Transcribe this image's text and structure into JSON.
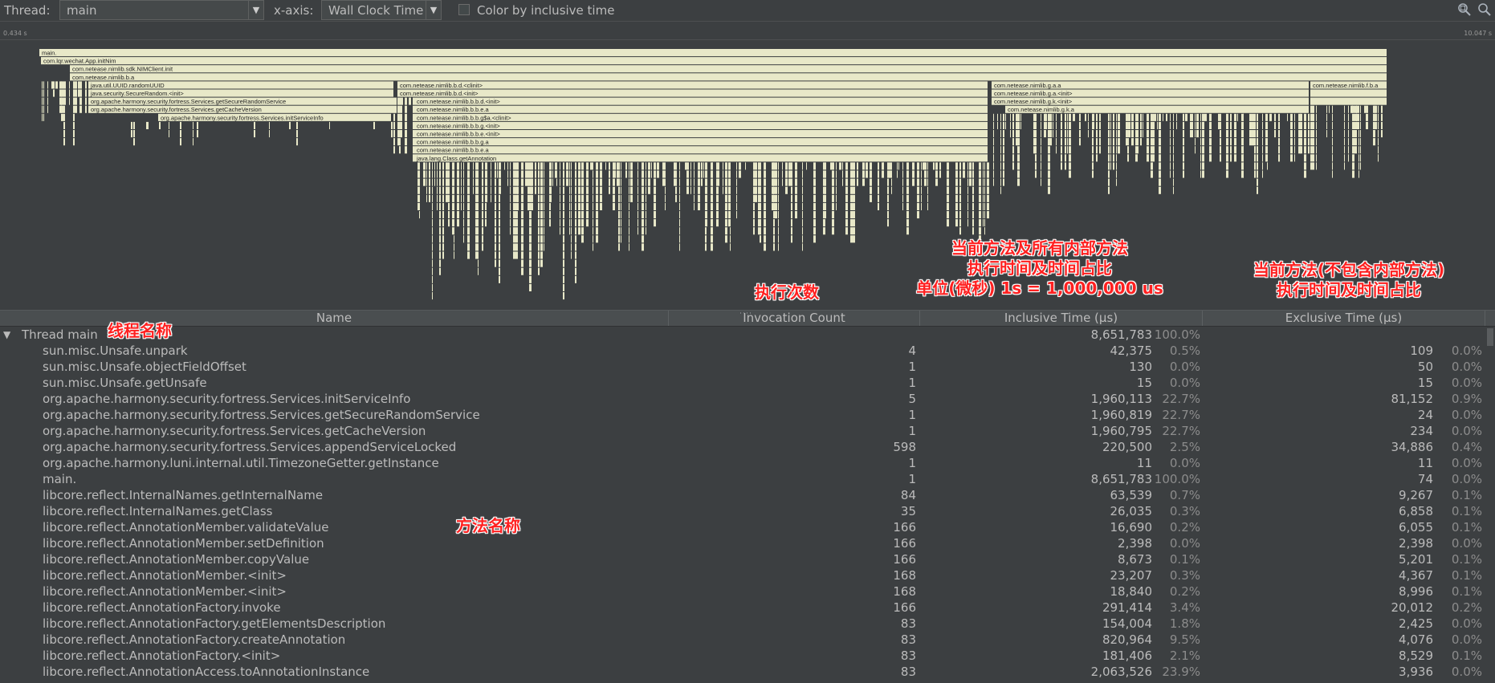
{
  "toolbar": {
    "thread_label": "Thread:",
    "thread_value": "main",
    "xaxis_label": "x-axis:",
    "xaxis_value": "Wall Clock Time",
    "color_checkbox_label": "Color by inclusive time",
    "color_checkbox_checked": false,
    "icons": [
      "zoom-fit-icon",
      "search-icon"
    ]
  },
  "ruler": {
    "start": "0.434 s",
    "end": "10.047 s"
  },
  "flame": {
    "labels": [
      "main.",
      "com.lqr.wechat.App.initNim",
      "com.netease.nimlib.sdk.NIMClient.init",
      "com.netease.nimlib.b.a",
      "java.util.UUID.randomUUID",
      "java.security.SecureRandom.<init>",
      "org.apache.harmony.security.fortress.Services.getSecureRandomService",
      "org.apache.harmony.security.fortress.Services.getCacheVersion",
      "org.apache.harmony.security.fortress.Services.initServiceInfo",
      "com.netease.nimlib.b.d.<clinit>",
      "com.netease.nimlib.b.d.<init>",
      "com.netease.nimlib.b.b.d.<init>",
      "com.netease.nimlib.b.b.e.a",
      "com.netease.nimlib.b.b.g$a.<clinit>",
      "com.netease.nimlib.b.b.g.<init>",
      "com.netease.nimlib.b.b.e.<init>",
      "com.netease.nimlib.b.b.g.a",
      "com.netease.nimlib.b.b.e.a",
      "java.lang.Class.getAnnotation",
      "com.netease.nimlib.g.a.a",
      "com.netease.nimlib.g.a.<init>",
      "com.netease.nimlib.g.k.<init>",
      "com.netease.nimlib.g.k.a",
      "com.netease.nimlib.f.b.a"
    ],
    "color": "#e8e8c8"
  },
  "annotations": {
    "count": "执行次数",
    "inclusive": [
      "当前方法及所有内部方法",
      "执行时间及时间占比",
      "单位(微秒) 1s = 1,000,000 us"
    ],
    "exclusive": [
      "当前方法(不包含内部方法)",
      "执行时间及时间占比"
    ],
    "thread": "线程名称",
    "method": "方法名称",
    "color": "#ff2020"
  },
  "table": {
    "headers": [
      "Name",
      "Invocation Count",
      "Inclusive Time (µs)",
      "Exclusive Time (µs)"
    ],
    "thread_row": {
      "name": "Thread main",
      "incl": "8,651,783",
      "inclp": "100.0%"
    },
    "rows": [
      {
        "name": "sun.misc.Unsafe.unpark",
        "inv": "4",
        "incl": "42,375",
        "inclp": "0.5%",
        "excl": "109",
        "exclp": "0.0%"
      },
      {
        "name": "sun.misc.Unsafe.objectFieldOffset",
        "inv": "1",
        "incl": "130",
        "inclp": "0.0%",
        "excl": "50",
        "exclp": "0.0%"
      },
      {
        "name": "sun.misc.Unsafe.getUnsafe",
        "inv": "1",
        "incl": "15",
        "inclp": "0.0%",
        "excl": "15",
        "exclp": "0.0%"
      },
      {
        "name": "org.apache.harmony.security.fortress.Services.initServiceInfo",
        "inv": "5",
        "incl": "1,960,113",
        "inclp": "22.7%",
        "excl": "81,152",
        "exclp": "0.9%"
      },
      {
        "name": "org.apache.harmony.security.fortress.Services.getSecureRandomService",
        "inv": "1",
        "incl": "1,960,819",
        "inclp": "22.7%",
        "excl": "24",
        "exclp": "0.0%"
      },
      {
        "name": "org.apache.harmony.security.fortress.Services.getCacheVersion",
        "inv": "1",
        "incl": "1,960,795",
        "inclp": "22.7%",
        "excl": "234",
        "exclp": "0.0%"
      },
      {
        "name": "org.apache.harmony.security.fortress.Services.appendServiceLocked",
        "inv": "598",
        "incl": "220,500",
        "inclp": "2.5%",
        "excl": "34,886",
        "exclp": "0.4%"
      },
      {
        "name": "org.apache.harmony.luni.internal.util.TimezoneGetter.getInstance",
        "inv": "1",
        "incl": "11",
        "inclp": "0.0%",
        "excl": "11",
        "exclp": "0.0%"
      },
      {
        "name": "main.",
        "inv": "1",
        "incl": "8,651,783",
        "inclp": "100.0%",
        "excl": "74",
        "exclp": "0.0%"
      },
      {
        "name": "libcore.reflect.InternalNames.getInternalName",
        "inv": "84",
        "incl": "63,539",
        "inclp": "0.7%",
        "excl": "9,267",
        "exclp": "0.1%"
      },
      {
        "name": "libcore.reflect.InternalNames.getClass",
        "inv": "35",
        "incl": "26,035",
        "inclp": "0.3%",
        "excl": "6,858",
        "exclp": "0.1%"
      },
      {
        "name": "libcore.reflect.AnnotationMember.validateValue",
        "inv": "166",
        "incl": "16,690",
        "inclp": "0.2%",
        "excl": "6,055",
        "exclp": "0.1%"
      },
      {
        "name": "libcore.reflect.AnnotationMember.setDefinition",
        "inv": "166",
        "incl": "2,398",
        "inclp": "0.0%",
        "excl": "2,398",
        "exclp": "0.0%"
      },
      {
        "name": "libcore.reflect.AnnotationMember.copyValue",
        "inv": "166",
        "incl": "8,673",
        "inclp": "0.1%",
        "excl": "5,201",
        "exclp": "0.1%"
      },
      {
        "name": "libcore.reflect.AnnotationMember.<init>",
        "inv": "168",
        "incl": "23,207",
        "inclp": "0.3%",
        "excl": "4,367",
        "exclp": "0.1%"
      },
      {
        "name": "libcore.reflect.AnnotationMember.<init>",
        "inv": "168",
        "incl": "18,840",
        "inclp": "0.2%",
        "excl": "8,996",
        "exclp": "0.1%"
      },
      {
        "name": "libcore.reflect.AnnotationFactory.invoke",
        "inv": "166",
        "incl": "291,414",
        "inclp": "3.4%",
        "excl": "20,012",
        "exclp": "0.2%"
      },
      {
        "name": "libcore.reflect.AnnotationFactory.getElementsDescription",
        "inv": "83",
        "incl": "154,004",
        "inclp": "1.8%",
        "excl": "2,425",
        "exclp": "0.0%"
      },
      {
        "name": "libcore.reflect.AnnotationFactory.createAnnotation",
        "inv": "83",
        "incl": "820,964",
        "inclp": "9.5%",
        "excl": "4,076",
        "exclp": "0.0%"
      },
      {
        "name": "libcore.reflect.AnnotationFactory.<init>",
        "inv": "83",
        "incl": "181,406",
        "inclp": "2.1%",
        "excl": "8,529",
        "exclp": "0.1%"
      },
      {
        "name": "libcore.reflect.AnnotationAccess.toAnnotationInstance",
        "inv": "83",
        "incl": "2,063,526",
        "inclp": "23.9%",
        "excl": "3,936",
        "exclp": "0.0%"
      }
    ]
  }
}
